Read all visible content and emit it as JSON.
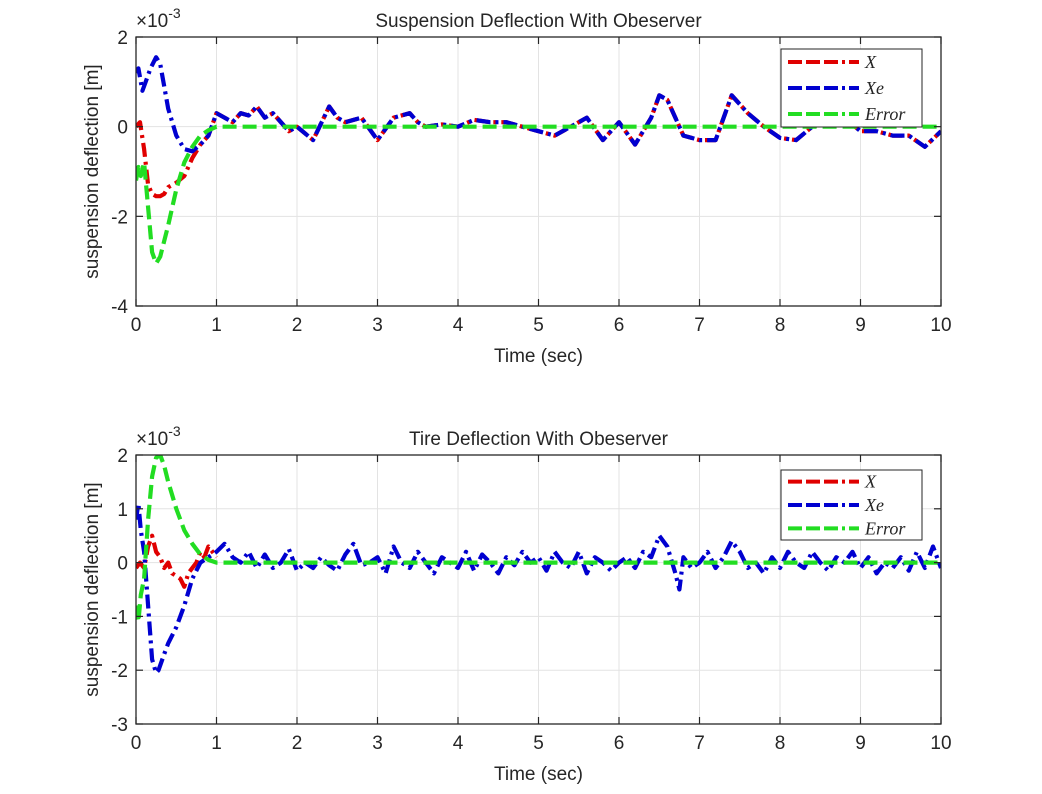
{
  "chart_data": [
    {
      "type": "line",
      "title": "Suspension Deflection With Obeserver",
      "xlabel": "Time (sec)",
      "ylabel": "suspension deflection [m]",
      "y_multiplier_label": "×10",
      "y_multiplier_exponent": "-3",
      "xlim": [
        0,
        10
      ],
      "ylim": [
        -4,
        2
      ],
      "xticks": [
        "0",
        "1",
        "2",
        "3",
        "4",
        "5",
        "6",
        "7",
        "8",
        "9",
        "10"
      ],
      "yticks": [
        "-4",
        "-2",
        "0",
        "2"
      ],
      "ytick_values": [
        -4,
        -2,
        0,
        2
      ],
      "grid": true,
      "legend_position": "top-right",
      "legend": [
        "X",
        "Xe",
        "Error"
      ],
      "series": [
        {
          "name": "X",
          "color": "#e00000",
          "style": "dash-dot",
          "x": [
            0,
            0.05,
            0.1,
            0.15,
            0.2,
            0.25,
            0.3,
            0.35,
            0.4,
            0.5,
            0.6,
            0.7,
            0.8,
            0.9,
            1.0,
            1.1,
            1.2,
            1.3,
            1.4,
            1.5,
            1.6,
            1.7,
            1.8,
            1.9,
            2.0,
            2.2,
            2.4,
            2.5,
            2.6,
            2.8,
            3.0,
            3.2,
            3.4,
            3.5,
            3.6,
            3.8,
            4.0,
            4.2,
            4.4,
            4.6,
            4.8,
            5.0,
            5.2,
            5.4,
            5.6,
            5.8,
            6.0,
            6.2,
            6.4,
            6.5,
            6.6,
            6.8,
            7.0,
            7.2,
            7.4,
            7.5,
            7.6,
            7.8,
            8.0,
            8.2,
            8.4,
            8.6,
            8.8,
            9.0,
            9.2,
            9.4,
            9.6,
            9.8,
            10.0
          ],
          "y": [
            0.0,
            0.1,
            -0.5,
            -1.3,
            -1.5,
            -1.55,
            -1.55,
            -1.5,
            -1.35,
            -1.25,
            -1.1,
            -0.7,
            -0.4,
            -0.2,
            0.3,
            0.2,
            0.1,
            0.3,
            0.25,
            0.45,
            0.2,
            0.3,
            0.1,
            -0.1,
            0.0,
            -0.3,
            0.45,
            0.2,
            0.1,
            0.2,
            -0.3,
            0.2,
            0.3,
            0.1,
            0.0,
            0.05,
            0.0,
            0.15,
            0.1,
            0.1,
            0.0,
            -0.1,
            -0.2,
            0.0,
            0.2,
            -0.3,
            0.1,
            -0.4,
            0.2,
            0.7,
            0.6,
            -0.2,
            -0.3,
            -0.3,
            0.7,
            0.5,
            0.3,
            0.0,
            -0.25,
            -0.3,
            0.0,
            0.1,
            0.2,
            -0.1,
            -0.1,
            -0.2,
            -0.2,
            -0.45,
            -0.1
          ]
        },
        {
          "name": "Xe",
          "color": "#0000d0",
          "style": "dash-dot",
          "x": [
            0,
            0.03,
            0.08,
            0.12,
            0.18,
            0.25,
            0.3,
            0.35,
            0.4,
            0.5,
            0.6,
            0.7,
            0.8,
            0.9,
            1.0,
            1.1,
            1.2,
            1.3,
            1.4,
            1.5,
            1.6,
            1.7,
            1.8,
            1.9,
            2.0,
            2.2,
            2.4,
            2.5,
            2.6,
            2.8,
            3.0,
            3.2,
            3.4,
            3.5,
            3.6,
            3.8,
            4.0,
            4.2,
            4.4,
            4.6,
            4.8,
            5.0,
            5.2,
            5.4,
            5.6,
            5.8,
            6.0,
            6.2,
            6.4,
            6.5,
            6.6,
            6.8,
            7.0,
            7.2,
            7.4,
            7.5,
            7.6,
            7.8,
            8.0,
            8.2,
            8.4,
            8.6,
            8.8,
            9.0,
            9.2,
            9.4,
            9.6,
            9.8,
            10.0
          ],
          "y": [
            1.2,
            1.3,
            0.8,
            1.0,
            1.3,
            1.55,
            1.4,
            0.9,
            0.4,
            -0.2,
            -0.5,
            -0.55,
            -0.4,
            -0.2,
            0.3,
            0.2,
            0.1,
            0.3,
            0.25,
            0.45,
            0.2,
            0.3,
            0.1,
            -0.1,
            0.0,
            -0.3,
            0.45,
            0.2,
            0.1,
            0.2,
            -0.3,
            0.2,
            0.3,
            0.1,
            0.0,
            0.05,
            0.0,
            0.15,
            0.1,
            0.1,
            0.0,
            -0.1,
            -0.2,
            0.0,
            0.2,
            -0.3,
            0.1,
            -0.4,
            0.2,
            0.7,
            0.6,
            -0.2,
            -0.3,
            -0.3,
            0.7,
            0.5,
            0.3,
            0.0,
            -0.25,
            -0.3,
            0.0,
            0.1,
            0.2,
            -0.1,
            -0.1,
            -0.2,
            -0.2,
            -0.45,
            -0.1
          ]
        },
        {
          "name": "Error",
          "color": "#22dd22",
          "style": "dashed",
          "x": [
            0,
            0.03,
            0.06,
            0.1,
            0.15,
            0.2,
            0.25,
            0.3,
            0.4,
            0.5,
            0.6,
            0.7,
            0.8,
            0.9,
            1.0,
            1.2,
            1.5,
            2.0,
            3.0,
            4.0,
            5.0,
            6.0,
            7.0,
            8.0,
            9.0,
            10.0
          ],
          "y": [
            -1.2,
            -0.9,
            -1.1,
            -0.8,
            -1.8,
            -2.8,
            -3.05,
            -2.9,
            -2.2,
            -1.4,
            -0.8,
            -0.45,
            -0.2,
            -0.08,
            0.0,
            0.0,
            0.0,
            0.0,
            0.0,
            0.0,
            0.0,
            0.0,
            0.0,
            0.0,
            0.0,
            0.0
          ]
        }
      ]
    },
    {
      "type": "line",
      "title": "Tire Deflection With Obeserver",
      "xlabel": "Time (sec)",
      "ylabel": "suspension deflection [m]",
      "y_multiplier_label": "×10",
      "y_multiplier_exponent": "-3",
      "xlim": [
        0,
        10
      ],
      "ylim": [
        -3,
        2
      ],
      "xticks": [
        "0",
        "1",
        "2",
        "3",
        "4",
        "5",
        "6",
        "7",
        "8",
        "9",
        "10"
      ],
      "yticks": [
        "-3",
        "-2",
        "-1",
        "0",
        "1",
        "2"
      ],
      "ytick_values": [
        -3,
        -2,
        -1,
        0,
        1,
        2
      ],
      "grid": true,
      "legend_position": "top-right",
      "legend": [
        "X",
        "Xe",
        "Error"
      ],
      "series": [
        {
          "name": "X",
          "color": "#e00000",
          "style": "dash-dot",
          "x": [
            0,
            0.05,
            0.1,
            0.15,
            0.2,
            0.25,
            0.3,
            0.35,
            0.4,
            0.45,
            0.5,
            0.55,
            0.6,
            0.65,
            0.7,
            0.75,
            0.8,
            0.85,
            0.9,
            0.95,
            1.0
          ],
          "y": [
            -0.1,
            0.0,
            -0.1,
            0.3,
            0.5,
            0.2,
            0.1,
            -0.1,
            0.0,
            -0.2,
            -0.25,
            -0.3,
            -0.45,
            -0.2,
            -0.1,
            0.0,
            0.2,
            0.1,
            0.3,
            0.2,
            0.1
          ]
        },
        {
          "name": "Xe",
          "color": "#0000d0",
          "style": "dash-dot",
          "x": [
            0,
            0.03,
            0.06,
            0.1,
            0.15,
            0.2,
            0.25,
            0.28,
            0.35,
            0.4,
            0.5,
            0.6,
            0.7,
            0.8,
            0.9,
            1.0,
            1.1,
            1.2,
            1.3,
            1.4,
            1.5,
            1.6,
            1.7,
            1.8,
            1.9,
            2.0,
            2.1,
            2.2,
            2.3,
            2.4,
            2.5,
            2.6,
            2.7,
            2.8,
            2.9,
            3.0,
            3.1,
            3.2,
            3.3,
            3.4,
            3.5,
            3.6,
            3.7,
            3.8,
            3.9,
            4.0,
            4.1,
            4.2,
            4.3,
            4.4,
            4.5,
            4.6,
            4.7,
            4.8,
            4.9,
            5.0,
            5.1,
            5.2,
            5.3,
            5.4,
            5.5,
            5.6,
            5.7,
            5.8,
            5.9,
            6.0,
            6.1,
            6.2,
            6.3,
            6.4,
            6.5,
            6.6,
            6.7,
            6.75,
            6.8,
            6.9,
            7.0,
            7.1,
            7.2,
            7.3,
            7.4,
            7.5,
            7.6,
            7.7,
            7.8,
            7.9,
            8.0,
            8.1,
            8.2,
            8.3,
            8.4,
            8.5,
            8.6,
            8.7,
            8.8,
            8.9,
            9.0,
            9.1,
            9.2,
            9.3,
            9.4,
            9.5,
            9.6,
            9.7,
            9.8,
            9.9,
            10.0
          ],
          "y": [
            0.8,
            1.1,
            0.6,
            0.2,
            -0.8,
            -1.8,
            -2.05,
            -2.0,
            -1.7,
            -1.5,
            -1.2,
            -0.8,
            -0.3,
            0.0,
            0.1,
            0.2,
            0.35,
            0.1,
            0.0,
            0.2,
            -0.1,
            0.15,
            -0.1,
            0.0,
            0.25,
            -0.15,
            0.0,
            -0.1,
            0.1,
            -0.05,
            -0.15,
            0.15,
            0.35,
            -0.05,
            0.0,
            0.1,
            -0.2,
            0.3,
            0.0,
            -0.1,
            0.2,
            0.0,
            -0.2,
            0.1,
            0.0,
            -0.1,
            0.2,
            -0.15,
            0.15,
            0.0,
            -0.2,
            0.1,
            -0.05,
            0.2,
            0.0,
            0.1,
            -0.15,
            0.2,
            0.0,
            -0.1,
            0.2,
            -0.2,
            0.1,
            0.0,
            -0.15,
            0.0,
            0.1,
            -0.1,
            0.2,
            0.1,
            0.5,
            0.3,
            -0.2,
            -0.5,
            0.1,
            -0.1,
            0.0,
            0.2,
            -0.1,
            0.1,
            0.4,
            0.2,
            -0.1,
            0.0,
            -0.2,
            0.1,
            -0.1,
            0.2,
            0.0,
            -0.1,
            0.2,
            0.0,
            -0.15,
            0.1,
            0.0,
            0.2,
            -0.1,
            0.1,
            -0.2,
            0.0,
            -0.1,
            0.1,
            -0.15,
            0.2,
            -0.1,
            0.3,
            -0.1
          ]
        },
        {
          "name": "Error",
          "color": "#22dd22",
          "style": "dashed",
          "x": [
            0,
            0.03,
            0.06,
            0.1,
            0.15,
            0.2,
            0.25,
            0.3,
            0.35,
            0.4,
            0.5,
            0.6,
            0.7,
            0.8,
            0.9,
            1.0,
            1.2,
            1.5,
            2.0,
            3.0,
            4.0,
            5.0,
            6.0,
            7.0,
            8.0,
            9.0,
            10.0
          ],
          "y": [
            -0.8,
            -1.1,
            -0.6,
            -0.3,
            0.8,
            1.6,
            1.95,
            2.0,
            1.8,
            1.5,
            1.0,
            0.6,
            0.35,
            0.15,
            0.05,
            0.0,
            0.0,
            0.0,
            0.0,
            0.0,
            0.0,
            0.0,
            0.0,
            0.0,
            0.0,
            0.0,
            0.0
          ]
        }
      ]
    }
  ]
}
